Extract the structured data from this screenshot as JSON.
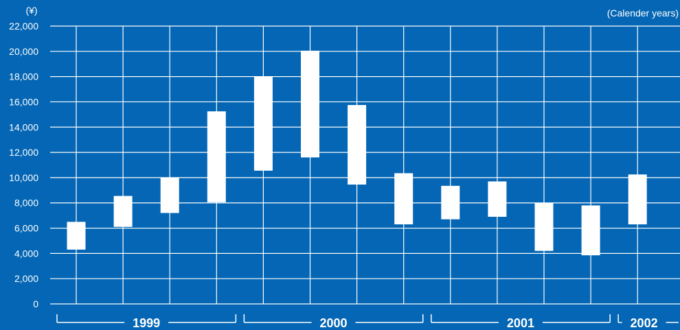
{
  "chart_data": {
    "type": "range-bar",
    "title": "",
    "ylabel": "(¥)",
    "xlabel": "(Calender years)",
    "ylim": [
      0,
      22000
    ],
    "ytick_values": [
      0,
      2000,
      4000,
      6000,
      8000,
      10000,
      12000,
      14000,
      16000,
      18000,
      20000,
      22000
    ],
    "ytick_labels": [
      "0",
      "2,000",
      "4,000",
      "6,000",
      "8,000",
      "10,000",
      "12,000",
      "14,000",
      "16,000",
      "18,000",
      "20,000",
      "22,000"
    ],
    "grid": true,
    "years": [
      {
        "label": "1999",
        "quarters": 4
      },
      {
        "label": "2000",
        "quarters": 4
      },
      {
        "label": "2001",
        "quarters": 4
      },
      {
        "label": "2002",
        "quarters": 1
      }
    ],
    "series": [
      {
        "name": "",
        "low": 4300,
        "high": 6500
      },
      {
        "name": "",
        "low": 6100,
        "high": 8550
      },
      {
        "name": "",
        "low": 7200,
        "high": 10000
      },
      {
        "name": "",
        "low": 8050,
        "high": 15250
      },
      {
        "name": "",
        "low": 10550,
        "high": 18000
      },
      {
        "name": "",
        "low": 11600,
        "high": 20050
      },
      {
        "name": "",
        "low": 9450,
        "high": 15750
      },
      {
        "name": "",
        "low": 6300,
        "high": 10350
      },
      {
        "name": "",
        "low": 6700,
        "high": 9350
      },
      {
        "name": "",
        "low": 6900,
        "high": 9700
      },
      {
        "name": "",
        "low": 4200,
        "high": 8000
      },
      {
        "name": "",
        "low": 3850,
        "high": 7800
      },
      {
        "name": "",
        "low": 6300,
        "high": 10250
      }
    ],
    "colors": {
      "background": "#0466b4",
      "bar": "#ffffff",
      "grid": "#ffffff"
    }
  }
}
